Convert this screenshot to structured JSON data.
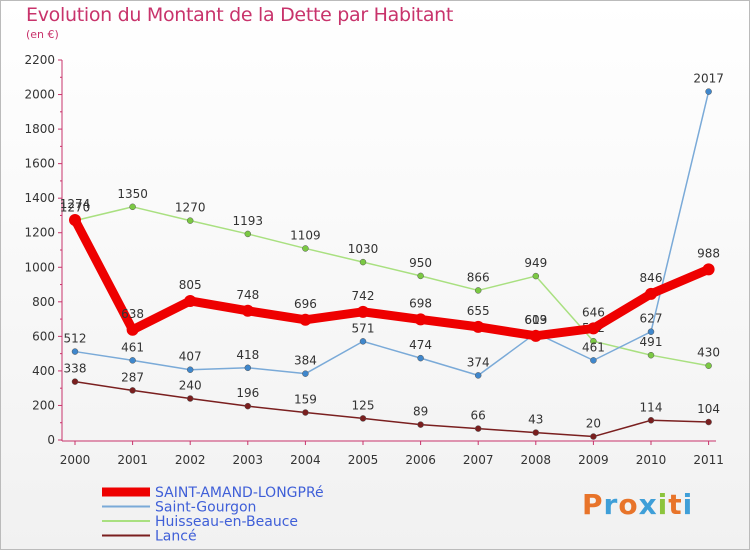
{
  "header": {
    "title": "Evolution du Montant de la Dette par Habitant",
    "subtitle": "(en €)"
  },
  "brand": {
    "logo_letters": [
      "P",
      "r",
      "o",
      "x",
      "i",
      "t",
      "i"
    ],
    "logo_colors": [
      "#e8742a",
      "#3f9fd8",
      "#e8742a",
      "#3f9fd8",
      "#8cc43c",
      "#e8742a",
      "#3f9fd8"
    ]
  },
  "chart_data": {
    "type": "line",
    "title": "Evolution du Montant de la Dette par Habitant",
    "subtitle": "(en €)",
    "xlabel": "",
    "ylabel": "",
    "categories": [
      "2000",
      "2001",
      "2002",
      "2003",
      "2004",
      "2005",
      "2006",
      "2007",
      "2008",
      "2009",
      "2010",
      "2011"
    ],
    "y_ticks": [
      0,
      200,
      400,
      600,
      800,
      1000,
      1200,
      1400,
      1600,
      1800,
      2000,
      2200
    ],
    "ylim": [
      0,
      2200
    ],
    "grid": false,
    "legend_position": "bottom-left",
    "series": [
      {
        "name": "Lancé",
        "color": "#7a1f1f",
        "marker_color": "#7a1f1f",
        "width": "thin",
        "values": [
          338,
          287,
          240,
          196,
          159,
          125,
          89,
          66,
          43,
          20,
          114,
          104
        ]
      },
      {
        "name": "Huisseau-en-Beauce",
        "color": "#a9e080",
        "marker_color": "#7bc943",
        "width": "thin",
        "values": [
          1270,
          1350,
          1270,
          1193,
          1109,
          1030,
          950,
          866,
          949,
          572,
          491,
          430
        ]
      },
      {
        "name": "Saint-Gourgon",
        "color": "#7aaad8",
        "marker_color": "#3f87cc",
        "width": "thin",
        "values": [
          512,
          461,
          407,
          418,
          384,
          571,
          474,
          374,
          619,
          461,
          627,
          2017
        ]
      },
      {
        "name": "SAINT-AMAND-LONGPRé",
        "color": "#ee0000",
        "marker_color": "#ee0000",
        "width": "thick",
        "values": [
          1274,
          638,
          805,
          748,
          696,
          742,
          698,
          655,
          603,
          646,
          846,
          988
        ]
      }
    ],
    "legend_order": [
      "SAINT-AMAND-LONGPRé",
      "Saint-Gourgon",
      "Huisseau-en-Beauce",
      "Lancé"
    ]
  }
}
